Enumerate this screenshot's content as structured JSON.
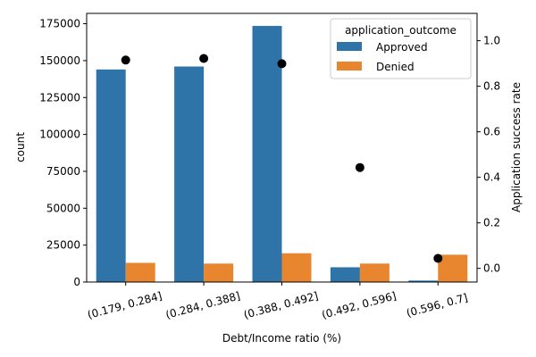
{
  "chart_data": {
    "type": "bar",
    "categories": [
      "(0.179, 0.284]",
      "(0.284, 0.388]",
      "(0.388, 0.492]",
      "(0.492, 0.596]",
      "(0.596, 0.7]"
    ],
    "series": [
      {
        "name": "Approved",
        "values": [
          144000,
          146000,
          173500,
          10000,
          1000
        ],
        "color": "#2f74a8"
      },
      {
        "name": "Denied",
        "values": [
          13000,
          12500,
          19500,
          12500,
          18500
        ],
        "color": "#e8852f"
      }
    ],
    "secondary_series": {
      "type": "scatter",
      "values": [
        0.915,
        0.922,
        0.899,
        0.443,
        0.044
      ],
      "color": "#000000"
    },
    "xlabel": "Debt/Income ratio (%)",
    "ylabel": "count",
    "ylabel_right": "Application success rate",
    "ylim": [
      0,
      182000
    ],
    "ylim_right": [
      -0.06,
      1.12
    ],
    "yticks": [
      0,
      25000,
      50000,
      75000,
      100000,
      125000,
      150000,
      175000
    ],
    "yticks_right": [
      0.0,
      0.2,
      0.4,
      0.6,
      0.8,
      1.0
    ],
    "legend": {
      "title": "application_outcome",
      "placement": "top-right"
    },
    "grid": false
  }
}
